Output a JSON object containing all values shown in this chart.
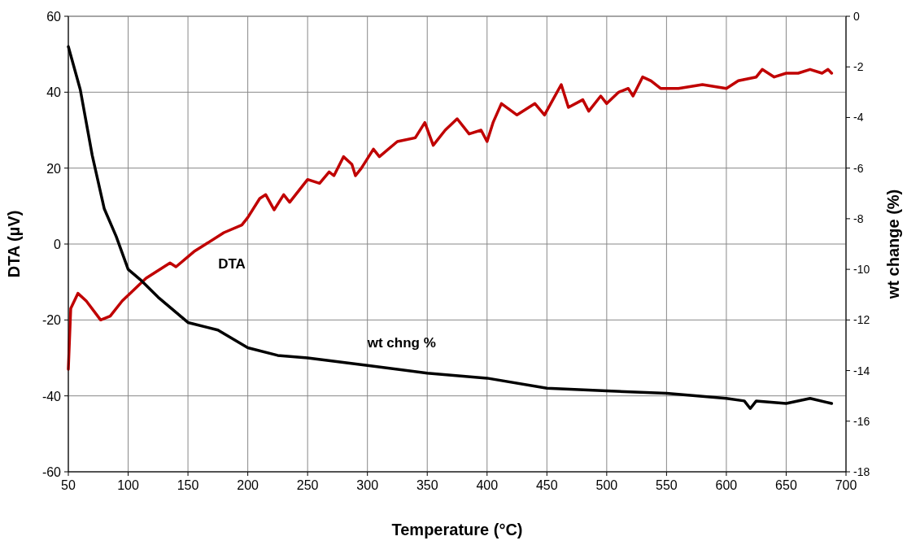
{
  "chart_data": {
    "type": "line",
    "xlabel": "Temperature (°C)",
    "ylabel": "DTA (µV)",
    "y2label": "wt change (%)",
    "xlim": [
      50,
      700
    ],
    "xticks": [
      50,
      100,
      150,
      200,
      250,
      300,
      350,
      400,
      450,
      500,
      550,
      600,
      650,
      700
    ],
    "ylim": [
      -60,
      60
    ],
    "yticks": [
      -60,
      -40,
      -20,
      0,
      20,
      40,
      60
    ],
    "y2lim": [
      -18,
      0
    ],
    "y2ticks": [
      -18,
      -16,
      -14,
      -12,
      -10,
      -8,
      -6,
      -4,
      -2,
      0
    ],
    "grid": true,
    "line_style": "solid",
    "marker": "none",
    "series": [
      {
        "name": "DTA",
        "color": "#c00000",
        "x": [
          50,
          52,
          58,
          65,
          77,
          85,
          95,
          105,
          115,
          135,
          140,
          155,
          165,
          180,
          195,
          200,
          210,
          215,
          222,
          230,
          235,
          250,
          260,
          268,
          272,
          280,
          287,
          290,
          295,
          305,
          310,
          325,
          340,
          348,
          355,
          365,
          375,
          385,
          395,
          400,
          405,
          412,
          425,
          440,
          448,
          455,
          462,
          468,
          480,
          485,
          495,
          500,
          510,
          518,
          522,
          530,
          537,
          545,
          560,
          580,
          600,
          610,
          625,
          630,
          640,
          650,
          660,
          670,
          680,
          685,
          688
        ],
        "values": [
          -33,
          -17,
          -13,
          -15,
          -20,
          -19,
          -15,
          -12,
          -9,
          -5,
          -6,
          -2,
          0,
          3,
          5,
          7,
          12,
          13,
          9,
          13,
          11,
          17,
          16,
          19,
          18,
          23,
          21,
          18,
          20,
          25,
          23,
          27,
          28,
          32,
          26,
          30,
          33,
          29,
          30,
          27,
          32,
          37,
          34,
          37,
          34,
          38,
          42,
          36,
          38,
          35,
          39,
          37,
          40,
          41,
          39,
          44,
          43,
          41,
          41,
          42,
          41,
          43,
          44,
          46,
          44,
          45,
          45,
          46,
          45,
          46,
          45
        ]
      },
      {
        "name": "wt chng %",
        "color": "#000000",
        "axis": "y2",
        "x": [
          50,
          60,
          70,
          80,
          90,
          100,
          110,
          125,
          150,
          175,
          200,
          225,
          250,
          300,
          350,
          400,
          450,
          500,
          550,
          600,
          615,
          620,
          625,
          650,
          670,
          688
        ],
        "values": [
          -1.2,
          -2.9,
          -5.5,
          -7.6,
          -8.7,
          -10.0,
          -10.4,
          -11.1,
          -12.1,
          -12.4,
          -13.1,
          -13.4,
          -13.5,
          -13.8,
          -14.1,
          -14.3,
          -14.7,
          -14.8,
          -14.9,
          -15.1,
          -15.2,
          -15.5,
          -15.2,
          -15.3,
          -15.1,
          -15.3
        ]
      }
    ]
  }
}
